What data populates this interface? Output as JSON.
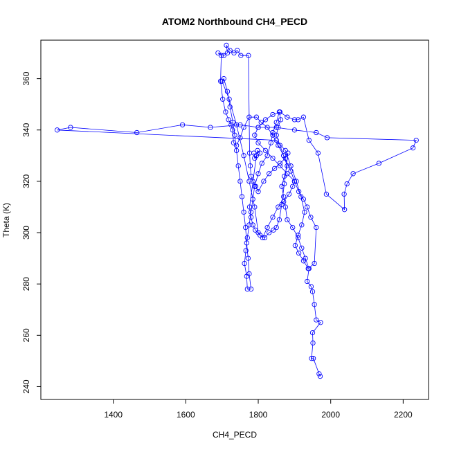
{
  "chart_data": {
    "type": "line",
    "title": "ATOM2 Northbound CH4_PECD",
    "xlabel": "CH4_PECD",
    "ylabel": "Theta (K)",
    "xlim": [
      1200,
      2270
    ],
    "ylim": [
      235,
      375
    ],
    "x_ticks": [
      1400,
      1600,
      1800,
      2000,
      2200
    ],
    "y_ticks": [
      240,
      260,
      280,
      300,
      320,
      340,
      360
    ],
    "grid": false,
    "legend": "none",
    "marker": "open-circle",
    "colors": {
      "series": "#0000ff",
      "axis": "#000000"
    },
    "series": [
      {
        "values": [
          [
            1971,
            244
          ],
          [
            1968,
            245
          ],
          [
            1952,
            251
          ],
          [
            1947,
            251
          ],
          [
            1951,
            257
          ],
          [
            1950,
            261
          ],
          [
            1972,
            265
          ],
          [
            1960,
            266
          ],
          [
            1955,
            272
          ],
          [
            1950,
            277
          ],
          [
            1946,
            279
          ],
          [
            1935,
            281
          ],
          [
            1940,
            286
          ],
          [
            1930,
            290
          ],
          [
            1920,
            294
          ],
          [
            1910,
            298
          ],
          [
            1895,
            302
          ],
          [
            1880,
            305
          ],
          [
            1875,
            310
          ],
          [
            1870,
            314
          ],
          [
            1865,
            318
          ],
          [
            1872,
            322
          ],
          [
            1880,
            326
          ],
          [
            1870,
            330
          ],
          [
            1860,
            334
          ],
          [
            1850,
            338
          ],
          [
            1855,
            341
          ],
          [
            1862,
            344
          ],
          [
            1858,
            347
          ],
          [
            1850,
            343
          ],
          [
            1840,
            339
          ],
          [
            1835,
            335
          ],
          [
            1825,
            330
          ],
          [
            1810,
            327
          ],
          [
            1800,
            323
          ],
          [
            1790,
            318
          ],
          [
            1785,
            313
          ],
          [
            1780,
            308
          ],
          [
            1775,
            303
          ],
          [
            1770,
            298
          ],
          [
            1766,
            293
          ],
          [
            1762,
            288
          ],
          [
            1768,
            283
          ],
          [
            1770,
            278
          ],
          [
            1780,
            278
          ],
          [
            1775,
            284
          ],
          [
            1772,
            290
          ],
          [
            1768,
            296
          ],
          [
            1765,
            302
          ],
          [
            1760,
            308
          ],
          [
            1755,
            314
          ],
          [
            1750,
            320
          ],
          [
            1745,
            326
          ],
          [
            1740,
            332
          ],
          [
            1735,
            338
          ],
          [
            1730,
            343
          ],
          [
            1722,
            349
          ],
          [
            1715,
            355
          ],
          [
            1705,
            360
          ],
          [
            1700,
            359
          ],
          [
            1720,
            352
          ],
          [
            1740,
            342
          ],
          [
            1760,
            330
          ],
          [
            1775,
            320
          ],
          [
            1790,
            310
          ],
          [
            1800,
            300
          ],
          [
            1812,
            298
          ],
          [
            1825,
            302
          ],
          [
            1840,
            306
          ],
          [
            1855,
            310
          ],
          [
            1870,
            312
          ],
          [
            1885,
            315
          ],
          [
            1895,
            318
          ],
          [
            1900,
            320
          ],
          [
            1880,
            323
          ],
          [
            1860,
            326
          ],
          [
            1840,
            329
          ],
          [
            1820,
            332
          ],
          [
            1800,
            335
          ],
          [
            1790,
            338
          ],
          [
            1800,
            341
          ],
          [
            1820,
            344
          ],
          [
            1840,
            346
          ],
          [
            1860,
            347
          ],
          [
            1880,
            345
          ],
          [
            1900,
            344
          ],
          [
            1910,
            344
          ],
          [
            1925,
            345
          ],
          [
            1940,
            336
          ],
          [
            1965,
            331
          ],
          [
            1988,
            315
          ],
          [
            2038,
            309
          ],
          [
            2037,
            315
          ],
          [
            2045,
            319
          ],
          [
            2062,
            323
          ],
          [
            2133,
            327
          ],
          [
            2227,
            333
          ],
          [
            2236,
            336
          ],
          [
            1990,
            337
          ],
          [
            1960,
            339
          ],
          [
            1900,
            340
          ],
          [
            1850,
            341
          ],
          [
            1800,
            341
          ],
          [
            1750,
            342
          ],
          [
            1668,
            341
          ],
          [
            1591,
            342
          ],
          [
            1465,
            339
          ],
          [
            1282,
            341
          ],
          [
            1245,
            340
          ],
          [
            1850,
            336
          ],
          [
            1875,
            332
          ],
          [
            1890,
            326
          ],
          [
            1905,
            320
          ],
          [
            1918,
            314
          ],
          [
            1928,
            308
          ],
          [
            1920,
            303
          ],
          [
            1910,
            299
          ],
          [
            1902,
            295
          ],
          [
            1912,
            292
          ],
          [
            1925,
            289
          ],
          [
            1938,
            286
          ],
          [
            1955,
            288
          ],
          [
            1960,
            302
          ],
          [
            1945,
            306
          ],
          [
            1935,
            310
          ],
          [
            1925,
            313
          ],
          [
            1912,
            316
          ],
          [
            1900,
            320
          ],
          [
            1890,
            324
          ],
          [
            1870,
            330
          ],
          [
            1855,
            334
          ],
          [
            1840,
            338
          ],
          [
            1825,
            341
          ],
          [
            1808,
            343
          ],
          [
            1795,
            345
          ],
          [
            1775,
            345
          ],
          [
            1760,
            341
          ],
          [
            1750,
            337
          ],
          [
            1740,
            334
          ],
          [
            1732,
            335
          ],
          [
            1729,
            340
          ],
          [
            1725,
            342
          ],
          [
            1718,
            344
          ],
          [
            1710,
            347
          ],
          [
            1702,
            352
          ],
          [
            1696,
            359
          ],
          [
            1698,
            369
          ],
          [
            1689,
            370
          ],
          [
            1705,
            369
          ],
          [
            1715,
            370
          ],
          [
            1712,
            373
          ],
          [
            1722,
            371
          ],
          [
            1733,
            370
          ],
          [
            1742,
            371
          ],
          [
            1752,
            369
          ],
          [
            1773,
            369
          ],
          [
            1776,
            331
          ],
          [
            1778,
            326
          ],
          [
            1780,
            322
          ],
          [
            1785,
            320
          ],
          [
            1793,
            318
          ],
          [
            1800,
            316
          ],
          [
            1815,
            320
          ],
          [
            1830,
            323
          ],
          [
            1845,
            325
          ],
          [
            1860,
            327
          ],
          [
            1875,
            329
          ],
          [
            1882,
            331
          ],
          [
            1872,
            319
          ],
          [
            1865,
            311
          ],
          [
            1858,
            305
          ],
          [
            1850,
            302
          ],
          [
            1842,
            301
          ],
          [
            1830,
            300
          ],
          [
            1818,
            298
          ],
          [
            1805,
            299
          ],
          [
            1792,
            301
          ],
          [
            1785,
            303
          ],
          [
            1780,
            306
          ],
          [
            1776,
            310
          ],
          [
            1795,
            330
          ],
          [
            1798,
            332
          ],
          [
            1805,
            331
          ],
          [
            1790,
            329
          ],
          [
            1788,
            331
          ]
        ]
      }
    ]
  }
}
